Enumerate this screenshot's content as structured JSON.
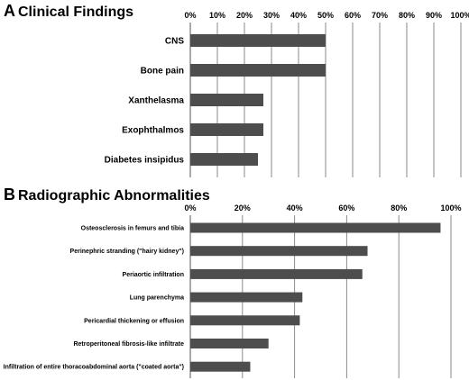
{
  "chart_data": [
    {
      "type": "bar",
      "orientation": "horizontal",
      "panel": "A",
      "title": "Clinical Findings",
      "categories": [
        "CNS",
        "Bone pain",
        "Xanthelasma",
        "Exophthalmos",
        "Diabetes insipidus"
      ],
      "values": [
        50,
        50,
        27,
        27,
        25
      ],
      "xlim": [
        0,
        100
      ],
      "ticks": [
        "0%",
        "10%",
        "20%",
        "30%",
        "40%",
        "50%",
        "60%",
        "70%",
        "80%",
        "90%",
        "100%"
      ],
      "tick_values": [
        0,
        10,
        20,
        30,
        40,
        50,
        60,
        70,
        80,
        90,
        100
      ],
      "axis_position": "top",
      "grid": true,
      "bar_color": "#4d4d4d"
    },
    {
      "type": "bar",
      "orientation": "horizontal",
      "panel": "B",
      "title": "Radiographic Abnormalities",
      "categories": [
        "Osteosclerosis in femurs and tibia",
        "Perinephric stranding (\"hairy kidney\")",
        "Periaortic infiltration",
        "Lung parenchyma",
        "Pericardial thickening or effusion",
        "Retroperitoneal fibrosis-like infiltrate",
        "Infiltration of entire thoracoabdominal aorta (\"coated aorta\")"
      ],
      "values": [
        96,
        68,
        66,
        43,
        42,
        30,
        23
      ],
      "xlim": [
        0,
        100
      ],
      "ticks": [
        "0%",
        "20%",
        "40%",
        "60%",
        "80%",
        "100%"
      ],
      "tick_values": [
        0,
        20,
        40,
        60,
        80,
        100
      ],
      "axis_position": "top",
      "grid": true,
      "bar_color": "#4d4d4d"
    }
  ]
}
